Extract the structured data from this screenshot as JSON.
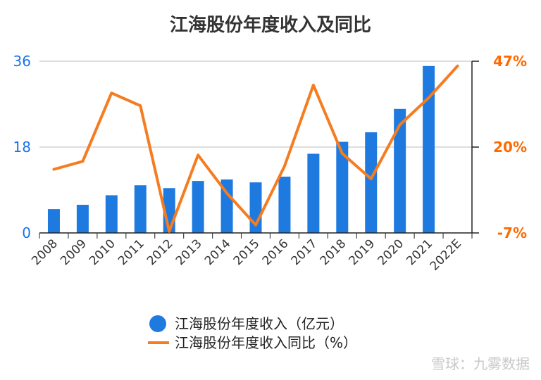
{
  "chart_data": {
    "type": "bar",
    "title": "江海股份年度收入及同比",
    "categories": [
      "2008",
      "2009",
      "2010",
      "2011",
      "2012",
      "2013",
      "2014",
      "2015",
      "2016",
      "2017",
      "2018",
      "2019",
      "2020",
      "2021",
      "2022E"
    ],
    "series": [
      {
        "name": "江海股份年度收入（亿元）",
        "type": "bar",
        "axis": "left",
        "color": "#1f7ae0",
        "values": [
          5.0,
          5.9,
          7.9,
          10.0,
          9.4,
          10.9,
          11.2,
          10.6,
          11.8,
          16.6,
          19.1,
          21.1,
          26.0,
          35.0,
          null
        ]
      },
      {
        "name": "江海股份年度收入同比（%）",
        "type": "line",
        "axis": "right",
        "color": "#f57c1f",
        "values": [
          13.0,
          15.5,
          37.0,
          33.0,
          -6.5,
          17.5,
          5.5,
          -4.5,
          14.0,
          39.5,
          18.0,
          10.0,
          27.0,
          35.5,
          45.5
        ]
      }
    ],
    "y_left": {
      "min": 0,
      "max": 36,
      "ticks": [
        "0",
        "18",
        "36"
      ],
      "tick_values": [
        0,
        18,
        36
      ]
    },
    "y_right": {
      "min": -7,
      "max": 47,
      "ticks": [
        "-7%",
        "20%",
        "47%"
      ],
      "tick_values": [
        -7,
        20,
        47
      ]
    },
    "grid": true,
    "legend_position": "bottom"
  },
  "watermark": "雪球：九雾数据",
  "colors": {
    "bar": "#1f7ae0",
    "line": "#f57c1f",
    "left_axis_text": "#1a73e8",
    "right_axis_text": "#ff6a00",
    "grid": "#dddddd"
  }
}
